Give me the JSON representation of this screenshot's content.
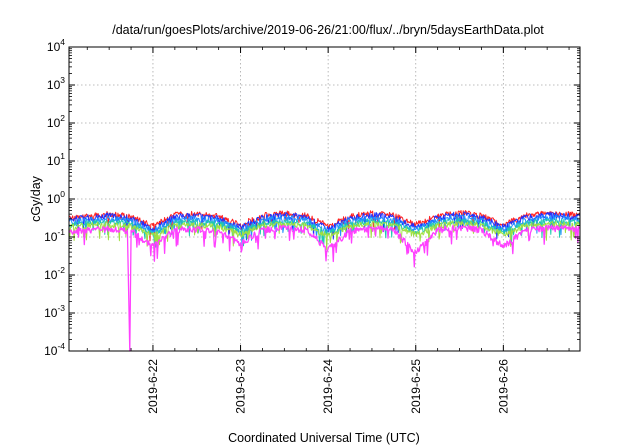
{
  "chart_data": {
    "type": "line",
    "title": "/data/run/goesPlots/archive/2019-06-26/21:00/flux/../bryn/5daysEarthData.plot",
    "xlabel": "Coordinated Universal Time (UTC)",
    "ylabel": "cGy/day",
    "yscale": "log",
    "ylim": [
      0.0001,
      10000
    ],
    "ytick_values": [
      0.0001,
      0.001,
      0.01,
      0.1,
      1,
      10,
      100,
      1000,
      10000
    ],
    "ytick_labels": [
      {
        "base": "10",
        "exp": "-4"
      },
      {
        "base": "10",
        "exp": "-3"
      },
      {
        "base": "10",
        "exp": "-2"
      },
      {
        "base": "10",
        "exp": "-1"
      },
      {
        "base": "10",
        "exp": "0"
      },
      {
        "base": "10",
        "exp": "1"
      },
      {
        "base": "10",
        "exp": "2"
      },
      {
        "base": "10",
        "exp": "3"
      },
      {
        "base": "10",
        "exp": "4"
      }
    ],
    "xlim": [
      "2019-06-21 01:00",
      "2019-06-26 21:00"
    ],
    "xticks": [
      "2019-6-22",
      "2019-6-23",
      "2019-6-24",
      "2019-6-25",
      "2019-6-26"
    ],
    "grid": true,
    "legend": "none",
    "series": [
      {
        "color": "#ff2020",
        "profile": [
          {
            "x": "2019-06-21 01:00",
            "y": 0.33
          },
          {
            "x": "2019-06-21 06:00",
            "y": 0.38
          },
          {
            "x": "2019-06-21 12:00",
            "y": 0.42
          },
          {
            "x": "2019-06-21 18:00",
            "y": 0.36
          },
          {
            "x": "2019-06-22 00:00",
            "y": 0.2
          },
          {
            "x": "2019-06-22 06:00",
            "y": 0.4
          },
          {
            "x": "2019-06-22 12:00",
            "y": 0.42
          },
          {
            "x": "2019-06-22 18:00",
            "y": 0.36
          },
          {
            "x": "2019-06-23 00:00",
            "y": 0.22
          },
          {
            "x": "2019-06-23 06:00",
            "y": 0.38
          },
          {
            "x": "2019-06-23 12:00",
            "y": 0.44
          },
          {
            "x": "2019-06-23 18:00",
            "y": 0.38
          },
          {
            "x": "2019-06-24 00:00",
            "y": 0.2
          },
          {
            "x": "2019-06-24 06:00",
            "y": 0.36
          },
          {
            "x": "2019-06-24 12:00",
            "y": 0.44
          },
          {
            "x": "2019-06-24 18:00",
            "y": 0.38
          },
          {
            "x": "2019-06-25 00:00",
            "y": 0.22
          },
          {
            "x": "2019-06-25 06:00",
            "y": 0.38
          },
          {
            "x": "2019-06-25 12:00",
            "y": 0.46
          },
          {
            "x": "2019-06-25 18:00",
            "y": 0.38
          },
          {
            "x": "2019-06-26 00:00",
            "y": 0.22
          },
          {
            "x": "2019-06-26 06:00",
            "y": 0.38
          },
          {
            "x": "2019-06-26 12:00",
            "y": 0.44
          },
          {
            "x": "2019-06-26 21:00",
            "y": 0.4
          }
        ]
      },
      {
        "color": "#2030ff",
        "profile": [
          {
            "x": "2019-06-21 01:00",
            "y": 0.3
          },
          {
            "x": "2019-06-21 06:00",
            "y": 0.34
          },
          {
            "x": "2019-06-21 12:00",
            "y": 0.38
          },
          {
            "x": "2019-06-21 18:00",
            "y": 0.32
          },
          {
            "x": "2019-06-22 00:00",
            "y": 0.17
          },
          {
            "x": "2019-06-22 06:00",
            "y": 0.36
          },
          {
            "x": "2019-06-22 12:00",
            "y": 0.38
          },
          {
            "x": "2019-06-22 18:00",
            "y": 0.32
          },
          {
            "x": "2019-06-23 00:00",
            "y": 0.19
          },
          {
            "x": "2019-06-23 06:00",
            "y": 0.34
          },
          {
            "x": "2019-06-23 12:00",
            "y": 0.4
          },
          {
            "x": "2019-06-23 18:00",
            "y": 0.34
          },
          {
            "x": "2019-06-24 00:00",
            "y": 0.17
          },
          {
            "x": "2019-06-24 06:00",
            "y": 0.32
          },
          {
            "x": "2019-06-24 12:00",
            "y": 0.4
          },
          {
            "x": "2019-06-24 18:00",
            "y": 0.34
          },
          {
            "x": "2019-06-25 00:00",
            "y": 0.19
          },
          {
            "x": "2019-06-25 06:00",
            "y": 0.34
          },
          {
            "x": "2019-06-25 12:00",
            "y": 0.42
          },
          {
            "x": "2019-06-25 18:00",
            "y": 0.34
          },
          {
            "x": "2019-06-26 00:00",
            "y": 0.19
          },
          {
            "x": "2019-06-26 06:00",
            "y": 0.34
          },
          {
            "x": "2019-06-26 12:00",
            "y": 0.4
          },
          {
            "x": "2019-06-26 21:00",
            "y": 0.36
          }
        ]
      },
      {
        "color": "#2090ff",
        "profile": [
          {
            "x": "2019-06-21 01:00",
            "y": 0.26
          },
          {
            "x": "2019-06-21 06:00",
            "y": 0.29
          },
          {
            "x": "2019-06-21 12:00",
            "y": 0.32
          },
          {
            "x": "2019-06-21 18:00",
            "y": 0.28
          },
          {
            "x": "2019-06-22 00:00",
            "y": 0.15
          },
          {
            "x": "2019-06-22 06:00",
            "y": 0.3
          },
          {
            "x": "2019-06-22 12:00",
            "y": 0.32
          },
          {
            "x": "2019-06-22 18:00",
            "y": 0.28
          },
          {
            "x": "2019-06-23 00:00",
            "y": 0.16
          },
          {
            "x": "2019-06-23 06:00",
            "y": 0.29
          },
          {
            "x": "2019-06-23 12:00",
            "y": 0.34
          },
          {
            "x": "2019-06-23 18:00",
            "y": 0.29
          },
          {
            "x": "2019-06-24 00:00",
            "y": 0.15
          },
          {
            "x": "2019-06-24 06:00",
            "y": 0.28
          },
          {
            "x": "2019-06-24 12:00",
            "y": 0.34
          },
          {
            "x": "2019-06-24 18:00",
            "y": 0.29
          },
          {
            "x": "2019-06-25 00:00",
            "y": 0.16
          },
          {
            "x": "2019-06-25 06:00",
            "y": 0.29
          },
          {
            "x": "2019-06-25 12:00",
            "y": 0.35
          },
          {
            "x": "2019-06-25 18:00",
            "y": 0.29
          },
          {
            "x": "2019-06-26 00:00",
            "y": 0.16
          },
          {
            "x": "2019-06-26 06:00",
            "y": 0.29
          },
          {
            "x": "2019-06-26 12:00",
            "y": 0.34
          },
          {
            "x": "2019-06-26 21:00",
            "y": 0.31
          }
        ]
      },
      {
        "color": "#20c8b0",
        "profile": [
          {
            "x": "2019-06-21 01:00",
            "y": 0.22
          },
          {
            "x": "2019-06-21 06:00",
            "y": 0.24
          },
          {
            "x": "2019-06-21 12:00",
            "y": 0.26
          },
          {
            "x": "2019-06-21 18:00",
            "y": 0.23
          },
          {
            "x": "2019-06-22 00:00",
            "y": 0.13
          },
          {
            "x": "2019-06-22 06:00",
            "y": 0.25
          },
          {
            "x": "2019-06-22 12:00",
            "y": 0.26
          },
          {
            "x": "2019-06-22 18:00",
            "y": 0.23
          },
          {
            "x": "2019-06-23 00:00",
            "y": 0.14
          },
          {
            "x": "2019-06-23 06:00",
            "y": 0.24
          },
          {
            "x": "2019-06-23 12:00",
            "y": 0.27
          },
          {
            "x": "2019-06-23 18:00",
            "y": 0.24
          },
          {
            "x": "2019-06-24 00:00",
            "y": 0.13
          },
          {
            "x": "2019-06-24 06:00",
            "y": 0.23
          },
          {
            "x": "2019-06-24 12:00",
            "y": 0.27
          },
          {
            "x": "2019-06-24 18:00",
            "y": 0.24
          },
          {
            "x": "2019-06-25 00:00",
            "y": 0.14
          },
          {
            "x": "2019-06-25 06:00",
            "y": 0.24
          },
          {
            "x": "2019-06-25 12:00",
            "y": 0.28
          },
          {
            "x": "2019-06-25 18:00",
            "y": 0.24
          },
          {
            "x": "2019-06-26 00:00",
            "y": 0.14
          },
          {
            "x": "2019-06-26 06:00",
            "y": 0.24
          },
          {
            "x": "2019-06-26 12:00",
            "y": 0.27
          },
          {
            "x": "2019-06-26 21:00",
            "y": 0.25
          }
        ]
      },
      {
        "color": "#a0e040",
        "profile": [
          {
            "x": "2019-06-21 01:00",
            "y": 0.19
          },
          {
            "x": "2019-06-21 06:00",
            "y": 0.21
          },
          {
            "x": "2019-06-21 12:00",
            "y": 0.22
          },
          {
            "x": "2019-06-21 18:00",
            "y": 0.2
          },
          {
            "x": "2019-06-22 00:00",
            "y": 0.11
          },
          {
            "x": "2019-06-22 06:00",
            "y": 0.21
          },
          {
            "x": "2019-06-22 12:00",
            "y": 0.22
          },
          {
            "x": "2019-06-22 18:00",
            "y": 0.2
          },
          {
            "x": "2019-06-23 00:00",
            "y": 0.12
          },
          {
            "x": "2019-06-23 06:00",
            "y": 0.21
          },
          {
            "x": "2019-06-23 12:00",
            "y": 0.23
          },
          {
            "x": "2019-06-23 18:00",
            "y": 0.21
          },
          {
            "x": "2019-06-24 00:00",
            "y": 0.11
          },
          {
            "x": "2019-06-24 06:00",
            "y": 0.2
          },
          {
            "x": "2019-06-24 12:00",
            "y": 0.23
          },
          {
            "x": "2019-06-24 18:00",
            "y": 0.21
          },
          {
            "x": "2019-06-25 00:00",
            "y": 0.12
          },
          {
            "x": "2019-06-25 06:00",
            "y": 0.21
          },
          {
            "x": "2019-06-25 12:00",
            "y": 0.24
          },
          {
            "x": "2019-06-25 18:00",
            "y": 0.21
          },
          {
            "x": "2019-06-26 00:00",
            "y": 0.12
          },
          {
            "x": "2019-06-26 06:00",
            "y": 0.21
          },
          {
            "x": "2019-06-26 12:00",
            "y": 0.23
          },
          {
            "x": "2019-06-26 21:00",
            "y": 0.22
          }
        ]
      },
      {
        "color": "#ff40ff",
        "profile": [
          {
            "x": "2019-06-21 01:00",
            "y": 0.15
          },
          {
            "x": "2019-06-21 06:00",
            "y": 0.16
          },
          {
            "x": "2019-06-21 12:00",
            "y": 0.17
          },
          {
            "x": "2019-06-21 17:00",
            "y": 0.15
          },
          {
            "x": "2019-06-21 17:40",
            "y": 0.0001
          },
          {
            "x": "2019-06-21 18:00",
            "y": 0.15
          },
          {
            "x": "2019-06-22 00:00",
            "y": 0.06
          },
          {
            "x": "2019-06-22 06:00",
            "y": 0.16
          },
          {
            "x": "2019-06-22 12:00",
            "y": 0.17
          },
          {
            "x": "2019-06-22 18:00",
            "y": 0.15
          },
          {
            "x": "2019-06-23 00:00",
            "y": 0.07
          },
          {
            "x": "2019-06-23 06:00",
            "y": 0.16
          },
          {
            "x": "2019-06-23 12:00",
            "y": 0.18
          },
          {
            "x": "2019-06-23 18:00",
            "y": 0.16
          },
          {
            "x": "2019-06-24 00:00",
            "y": 0.05
          },
          {
            "x": "2019-06-24 06:00",
            "y": 0.15
          },
          {
            "x": "2019-06-24 12:00",
            "y": 0.18
          },
          {
            "x": "2019-06-24 18:00",
            "y": 0.16
          },
          {
            "x": "2019-06-25 00:00",
            "y": 0.04
          },
          {
            "x": "2019-06-25 06:00",
            "y": 0.16
          },
          {
            "x": "2019-06-25 12:00",
            "y": 0.19
          },
          {
            "x": "2019-06-25 18:00",
            "y": 0.16
          },
          {
            "x": "2019-06-26 00:00",
            "y": 0.06
          },
          {
            "x": "2019-06-26 06:00",
            "y": 0.16
          },
          {
            "x": "2019-06-26 12:00",
            "y": 0.18
          },
          {
            "x": "2019-06-26 21:00",
            "y": 0.17
          }
        ]
      }
    ]
  }
}
